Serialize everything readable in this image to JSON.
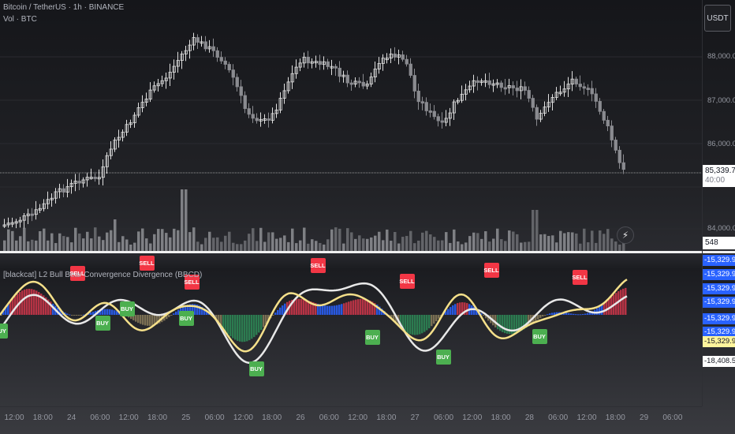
{
  "header": {
    "symbol_line": "Bitcoin / TetherUS · 1h · BINANCE",
    "volume_line": "Vol · BTC",
    "indicator_line": "[blackcat] L2 Bull Bear Convergence Divergence (BBCD)"
  },
  "currency_button": "USDT",
  "price_axis": {
    "ticks": [
      "88,000.00",
      "87,000.00",
      "86,000.00",
      "84,000.00"
    ]
  },
  "last_price": {
    "value": "85,339.72",
    "countdown": "40:00"
  },
  "volume_badge": "548",
  "indicator_axis": {
    "badges": [
      {
        "text": "-15,329.94",
        "color": "#2962ff"
      },
      {
        "text": "-15,329.94",
        "color": "#2962ff"
      },
      {
        "text": "-15,329.94",
        "color": "#2962ff"
      },
      {
        "text": "-15,329.94",
        "color": "#2962ff"
      },
      {
        "text": "-15,329.94",
        "color": "#2962ff"
      },
      {
        "text": "-15,329.94",
        "color": "#2962ff"
      },
      {
        "text": "-15,329.94",
        "color": "#fff59d"
      },
      {
        "text": "-18,408.53",
        "color": "#ffffff"
      }
    ]
  },
  "signals": {
    "sell_label": "SELL",
    "buy_label": "BUY"
  },
  "time_axis": {
    "labels": [
      "12:00",
      "18:00",
      "24",
      "06:00",
      "12:00",
      "18:00",
      "25",
      "06:00",
      "12:00",
      "18:00",
      "26",
      "06:00",
      "12:00",
      "18:00",
      "27",
      "06:00",
      "12:00",
      "18:00",
      "28",
      "06:00",
      "12:00",
      "18:00",
      "29",
      "06:00"
    ]
  },
  "colors": {
    "bull_candle": "#e0e0e0",
    "bear_candle": "#8a8b90",
    "volume_bar": "#6d6e73",
    "sell_badge": "#f23645",
    "buy_badge": "#4caf50",
    "line_yellow": "#f5e08a",
    "line_white": "#e8e8e8",
    "hist_red": "#d0364a",
    "hist_blue": "#2962ff",
    "hist_green": "#2e8b57",
    "hist_tan": "#8a7d5a"
  }
}
